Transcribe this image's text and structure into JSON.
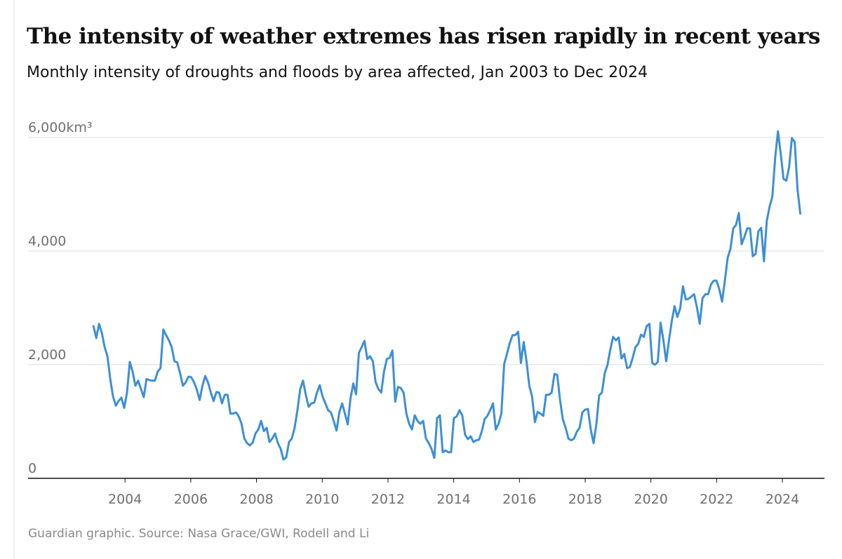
{
  "chart_data": {
    "type": "line",
    "title": "The intensity of weather extremes has risen rapidly in recent years",
    "subtitle": "Monthly intensity of droughts and floods by area affected, Jan 2003 to Dec 2024",
    "source": "Guardian graphic. Source: Nasa Grace/GWI, Rodell and Li",
    "x": [
      2003.04,
      2003.125,
      2003.21,
      2003.295,
      2003.38,
      2003.465,
      2003.55,
      2003.635,
      2003.72,
      2003.805,
      2003.89,
      2003.975,
      2004.06,
      2004.145,
      2004.23,
      2004.315,
      2004.4,
      2004.485,
      2004.57,
      2004.655,
      2004.74,
      2004.825,
      2004.91,
      2004.995,
      2005.08,
      2005.165,
      2005.25,
      2005.335,
      2005.42,
      2005.505,
      2005.59,
      2005.675,
      2005.76,
      2005.845,
      2005.93,
      2006.015,
      2006.1,
      2006.185,
      2006.27,
      2006.355,
      2006.44,
      2006.525,
      2006.61,
      2006.695,
      2006.78,
      2006.865,
      2006.95,
      2007.035,
      2007.12,
      2007.205,
      2007.29,
      2007.375,
      2007.46,
      2007.545,
      2007.63,
      2007.715,
      2007.8,
      2007.885,
      2007.97,
      2008.055,
      2008.14,
      2008.225,
      2008.31,
      2008.395,
      2008.48,
      2008.565,
      2008.65,
      2008.735,
      2008.82,
      2008.905,
      2008.99,
      2009.075,
      2009.16,
      2009.245,
      2009.33,
      2009.415,
      2009.5,
      2009.585,
      2009.67,
      2009.755,
      2009.84,
      2009.925,
      2010.01,
      2010.095,
      2010.18,
      2010.265,
      2010.35,
      2010.435,
      2010.52,
      2010.605,
      2010.69,
      2010.775,
      2010.86,
      2010.945,
      2011.03,
      2011.115,
      2011.2,
      2011.285,
      2011.37,
      2011.455,
      2011.54,
      2011.625,
      2011.71,
      2011.795,
      2011.88,
      2011.965,
      2012.05,
      2012.135,
      2012.22,
      2012.305,
      2012.39,
      2012.475,
      2012.56,
      2012.645,
      2012.73,
      2012.815,
      2012.9,
      2012.985,
      2013.07,
      2013.155,
      2013.24,
      2013.325,
      2013.41,
      2013.495,
      2013.58,
      2013.665,
      2013.75,
      2013.835,
      2013.92,
      2014.005,
      2014.09,
      2014.175,
      2014.26,
      2014.345,
      2014.43,
      2014.515,
      2014.6,
      2014.685,
      2014.77,
      2014.855,
      2014.94,
      2015.025,
      2015.11,
      2015.195,
      2015.28,
      2015.365,
      2015.45,
      2015.535,
      2015.62,
      2015.705,
      2015.79,
      2015.875,
      2015.96,
      2016.045,
      2016.13,
      2016.215,
      2016.3,
      2016.385,
      2016.47,
      2016.555,
      2016.64,
      2016.725,
      2016.81,
      2016.895,
      2016.98,
      2017.065,
      2017.15,
      2017.235,
      2017.32,
      2017.405,
      2017.49,
      2017.575,
      2017.66,
      2017.745,
      2017.83,
      2017.915,
      2018.0,
      2018.085,
      2018.17,
      2018.255,
      2018.34,
      2018.425,
      2018.51,
      2018.595,
      2018.68,
      2018.765,
      2018.85,
      2018.935,
      2019.02,
      2019.105,
      2019.19,
      2019.275,
      2019.36,
      2019.445,
      2019.53,
      2019.615,
      2019.7,
      2019.785,
      2019.87,
      2019.955,
      2020.04,
      2020.125,
      2020.21,
      2020.295,
      2020.38,
      2020.465,
      2020.55,
      2020.635,
      2020.72,
      2020.805,
      2020.89,
      2020.975,
      2021.06,
      2021.145,
      2021.23,
      2021.315,
      2021.4,
      2021.485,
      2021.57,
      2021.655,
      2021.74,
      2021.825,
      2021.91,
      2021.995,
      2022.08,
      2022.165,
      2022.25,
      2022.335,
      2022.42,
      2022.505,
      2022.59,
      2022.675,
      2022.76,
      2022.845,
      2022.93,
      2023.015,
      2023.1,
      2023.185,
      2023.27,
      2023.355,
      2023.44,
      2023.525,
      2023.61,
      2023.695,
      2023.78,
      2023.865,
      2023.95,
      2024.035,
      2024.12,
      2024.205,
      2024.29,
      2024.375,
      2024.46,
      2024.545
    ],
    "series": [
      {
        "color": "#3d8fd6",
        "values": [
          2680,
          2470,
          2720,
          2560,
          2310,
          2150,
          1750,
          1440,
          1280,
          1360,
          1420,
          1240,
          1510,
          2050,
          1880,
          1630,
          1720,
          1570,
          1430,
          1750,
          1730,
          1720,
          1720,
          1880,
          1940,
          2620,
          2520,
          2430,
          2310,
          2060,
          2040,
          1850,
          1630,
          1690,
          1790,
          1780,
          1690,
          1560,
          1380,
          1630,
          1800,
          1690,
          1510,
          1360,
          1520,
          1510,
          1320,
          1470,
          1470,
          1140,
          1140,
          1160,
          1090,
          960,
          700,
          620,
          580,
          630,
          790,
          860,
          1010,
          830,
          890,
          640,
          700,
          790,
          620,
          520,
          330,
          370,
          640,
          700,
          890,
          1200,
          1570,
          1720,
          1470,
          1260,
          1320,
          1330,
          1510,
          1640,
          1440,
          1320,
          1200,
          1160,
          1010,
          840,
          1160,
          1320,
          1140,
          950,
          1410,
          1670,
          1480,
          2210,
          2310,
          2420,
          2100,
          2150,
          2060,
          1690,
          1570,
          1510,
          1880,
          2100,
          2120,
          2250,
          1350,
          1610,
          1590,
          1510,
          1140,
          960,
          860,
          1110,
          1010,
          960,
          1010,
          700,
          620,
          520,
          360,
          1060,
          1110,
          460,
          490,
          460,
          460,
          1060,
          1090,
          1200,
          1110,
          770,
          690,
          740,
          640,
          670,
          680,
          830,
          1040,
          1100,
          1200,
          1320,
          860,
          960,
          1140,
          2010,
          2190,
          2380,
          2520,
          2520,
          2580,
          2030,
          2400,
          2060,
          1630,
          1440,
          990,
          1170,
          1140,
          1100,
          1470,
          1470,
          1510,
          1840,
          1820,
          1380,
          1040,
          890,
          700,
          670,
          700,
          820,
          890,
          1160,
          1210,
          1220,
          860,
          620,
          950,
          1460,
          1510,
          1850,
          2000,
          2270,
          2490,
          2430,
          2480,
          2110,
          2190,
          1940,
          1960,
          2120,
          2310,
          2370,
          2530,
          2490,
          2680,
          2720,
          2030,
          2000,
          2050,
          2740,
          2430,
          2060,
          2430,
          2770,
          3030,
          2840,
          2990,
          3380,
          3150,
          3160,
          3200,
          3240,
          3010,
          2720,
          3170,
          3240,
          3240,
          3410,
          3480,
          3480,
          3330,
          3110,
          3480,
          3880,
          4040,
          4400,
          4460,
          4670,
          4120,
          4250,
          4400,
          4400,
          3910,
          3950,
          4350,
          4410,
          3820,
          4530,
          4780,
          4960,
          5640,
          6110,
          5710,
          5270,
          5240,
          5480,
          5990,
          5920,
          5090,
          4660
        ]
      }
    ],
    "xlim": [
      2001.05,
      2025.28
    ],
    "xticks": [
      2004,
      2006,
      2008,
      2010,
      2012,
      2014,
      2016,
      2018,
      2020,
      2022,
      2024
    ],
    "ylim": [
      0,
      6000
    ],
    "yticks": [
      0,
      {
        "value": 2000,
        "label": "2,000"
      },
      {
        "value": 4000,
        "label": "4,000"
      },
      {
        "value": 6000,
        "label": "6,000km³"
      }
    ],
    "grid": true
  }
}
